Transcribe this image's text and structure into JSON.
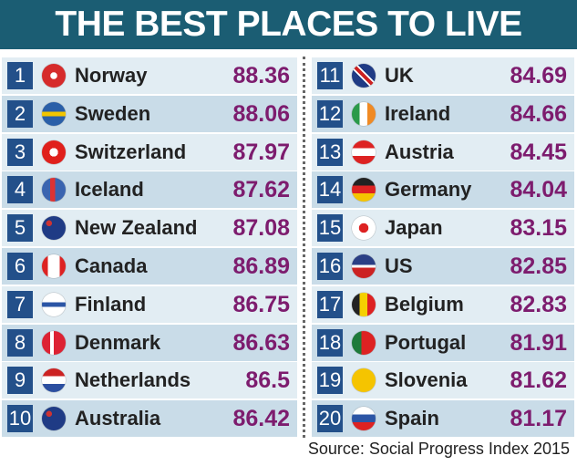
{
  "header": {
    "title": "THE BEST PLACES TO LIVE"
  },
  "table": {
    "rows": [
      [
        "1",
        "Norway",
        "88.36"
      ],
      [
        "2",
        "Sweden",
        "88.06"
      ],
      [
        "3",
        "Switzerland",
        "87.97"
      ],
      [
        "4",
        "Iceland",
        "87.62"
      ],
      [
        "5",
        "New Zealand",
        "87.08"
      ],
      [
        "6",
        "Canada",
        "86.89"
      ],
      [
        "7",
        "Finland",
        "86.75"
      ],
      [
        "8",
        "Denmark",
        "86.63"
      ],
      [
        "9",
        "Netherlands",
        "86.5"
      ],
      [
        "10",
        "Australia",
        "86.42"
      ],
      [
        "11",
        "UK",
        "84.69"
      ],
      [
        "12",
        "Ireland",
        "84.66"
      ],
      [
        "13",
        "Austria",
        "84.45"
      ],
      [
        "14",
        "Germany",
        "84.04"
      ],
      [
        "15",
        "Japan",
        "83.15"
      ],
      [
        "16",
        "US",
        "82.85"
      ],
      [
        "17",
        "Belgium",
        "82.83"
      ],
      [
        "18",
        "Portugal",
        "81.91"
      ],
      [
        "19",
        "Slovenia",
        "81.62"
      ],
      [
        "20",
        "Spain",
        "81.17"
      ]
    ]
  },
  "footer": {
    "source": "Source: Social Progress Index 2015"
  }
}
